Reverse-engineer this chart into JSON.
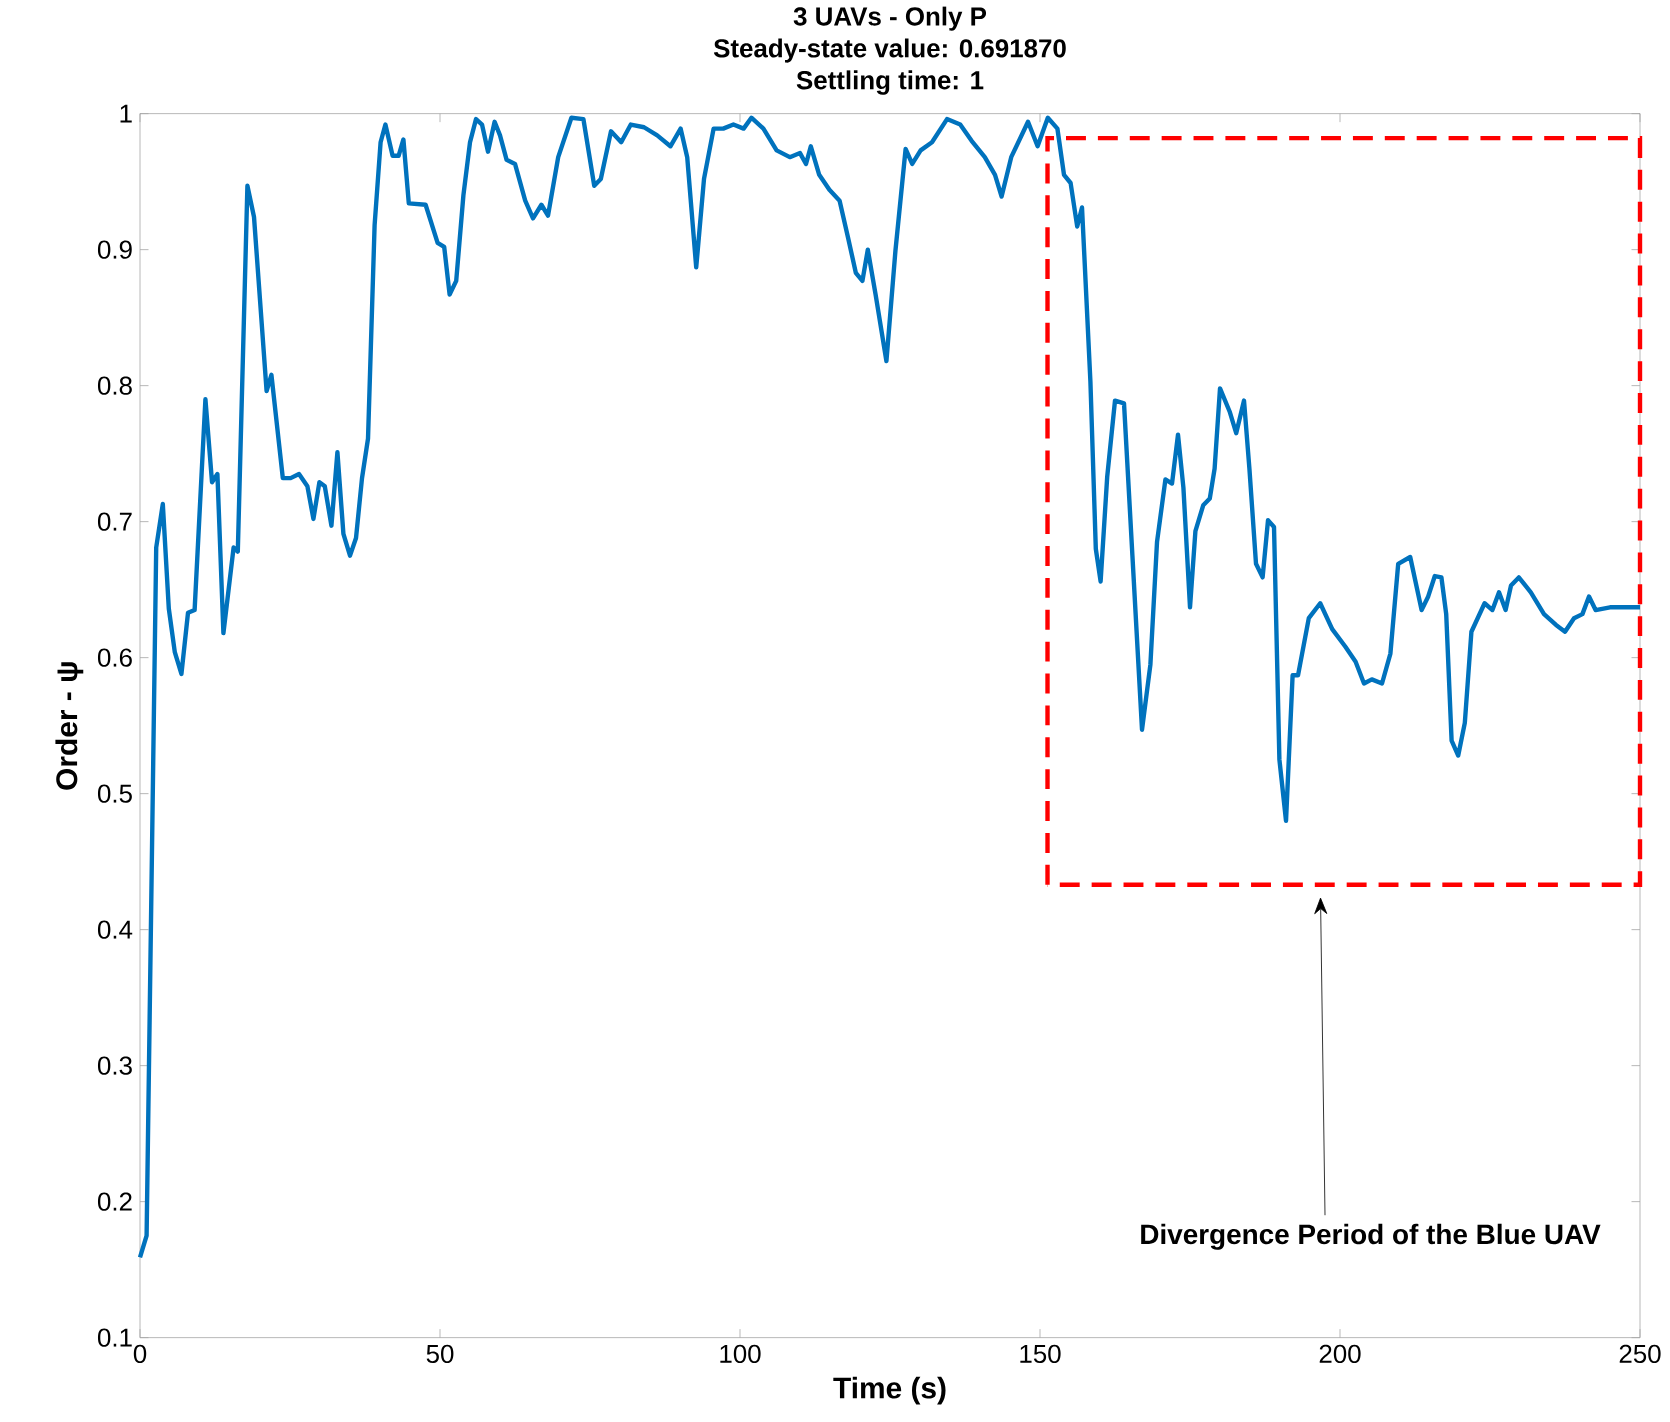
{
  "chart_data": {
    "type": "line",
    "title": "3 UAVs - Only P",
    "subtitle": "Steady-state value: 0.691870",
    "xlabel": "Time (s)",
    "ylabel": "Order - ψ",
    "xlim": [
      0,
      250
    ],
    "ylim": [
      0.1,
      1
    ],
    "xticks": [
      0,
      50,
      100,
      150,
      200,
      250
    ],
    "yticks": [
      {
        "value": 0.1,
        "label": "0.1"
      },
      {
        "value": 0.2,
        "label": "0.2"
      },
      {
        "value": 0.3,
        "label": "0.3"
      },
      {
        "value": 0.4,
        "label": "0.4"
      },
      {
        "value": 0.5,
        "label": "0.5"
      },
      {
        "value": 0.6,
        "label": "0.6"
      },
      {
        "value": 0.7,
        "label": "0.7"
      },
      {
        "value": 0.8,
        "label": "0.8"
      },
      {
        "value": 0.9,
        "label": "0.9"
      },
      {
        "value": 1,
        "label": "1"
      }
    ],
    "grid": false,
    "marker": "none",
    "line_style": "solid",
    "series": [
      {
        "color": "#0072bd",
        "x": [
          0,
          1.1,
          2.7,
          3.8,
          4.8,
          5.8,
          6.9,
          8.0,
          9.1,
          10.9,
          12.0,
          12.9,
          13.9,
          15.6,
          16.3,
          17.9,
          19.0,
          21.1,
          21.9,
          23.8,
          25.1,
          26.5,
          27.9,
          28.9,
          29.9,
          30.8,
          31.9,
          32.9,
          33.9,
          35.0,
          36.0,
          37.0,
          38.0,
          39.1,
          40.1,
          40.9,
          42.1,
          43.1,
          43.9,
          44.8,
          47.6,
          49.6,
          50.7,
          51.6,
          52.7,
          53.9,
          55.0,
          56.0,
          57.0,
          58.0,
          59.1,
          60.0,
          61.1,
          62.5,
          64.2,
          65.5,
          66.9,
          68.0,
          69.7,
          71.9,
          73.9,
          75.7,
          76.8,
          78.5,
          80.2,
          81.8,
          84.0,
          86.2,
          88.4,
          90.1,
          91.2,
          92.7,
          94.0,
          95.6,
          97.2,
          98.9,
          100.6,
          101.9,
          103.9,
          106.1,
          108.3,
          110.0,
          111.0,
          111.8,
          113.2,
          114.9,
          116.6,
          118.0,
          119.3,
          120.4,
          121.3,
          122.6,
          124.4,
          125.9,
          127.6,
          128.7,
          130.1,
          132.0,
          134.5,
          136.7,
          138.6,
          140.8,
          142.5,
          143.6,
          145.2,
          148.0,
          149.6,
          151.3,
          152.9,
          154.0,
          155.1,
          156.2,
          157.0,
          158.4,
          159.3,
          160.1,
          161.2,
          162.5,
          164.0,
          165.4,
          167.0,
          168.4,
          169.5,
          170.9,
          172.0,
          173.0,
          173.9,
          175.0,
          175.9,
          177.2,
          178.3,
          179.1,
          180.0,
          181.6,
          182.7,
          184.0,
          184.9,
          186.0,
          187.1,
          188.0,
          189.0,
          189.9,
          191.0,
          192.1,
          193.0,
          194.8,
          196.7,
          198.7,
          200.9,
          202.6,
          204.0,
          205.3,
          207.0,
          208.4,
          209.7,
          211.7,
          213.6,
          214.7,
          215.8,
          216.9,
          217.7,
          218.6,
          219.7,
          220.8,
          221.9,
          224.1,
          225.4,
          226.5,
          227.6,
          228.5,
          229.8,
          231.8,
          234.0,
          236.0,
          237.5,
          239.0,
          240.4,
          241.5,
          242.6,
          245.0,
          248.9,
          250
        ],
        "values": [
          0.159,
          0.175,
          0.681,
          0.713,
          0.636,
          0.604,
          0.588,
          0.633,
          0.635,
          0.79,
          0.729,
          0.735,
          0.618,
          0.681,
          0.678,
          0.947,
          0.924,
          0.796,
          0.808,
          0.732,
          0.732,
          0.735,
          0.726,
          0.702,
          0.729,
          0.726,
          0.697,
          0.751,
          0.691,
          0.675,
          0.688,
          0.732,
          0.761,
          0.918,
          0.979,
          0.992,
          0.969,
          0.969,
          0.981,
          0.934,
          0.933,
          0.905,
          0.902,
          0.867,
          0.877,
          0.94,
          0.979,
          0.996,
          0.992,
          0.972,
          0.994,
          0.984,
          0.966,
          0.963,
          0.936,
          0.923,
          0.933,
          0.925,
          0.968,
          0.997,
          0.996,
          0.947,
          0.952,
          0.987,
          0.979,
          0.992,
          0.99,
          0.984,
          0.976,
          0.989,
          0.968,
          0.887,
          0.952,
          0.989,
          0.989,
          0.992,
          0.989,
          0.997,
          0.989,
          0.973,
          0.968,
          0.971,
          0.963,
          0.976,
          0.955,
          0.944,
          0.936,
          0.909,
          0.883,
          0.877,
          0.9,
          0.867,
          0.818,
          0.899,
          0.974,
          0.963,
          0.973,
          0.979,
          0.996,
          0.992,
          0.98,
          0.968,
          0.955,
          0.939,
          0.968,
          0.994,
          0.976,
          0.997,
          0.989,
          0.955,
          0.949,
          0.917,
          0.931,
          0.803,
          0.68,
          0.656,
          0.733,
          0.789,
          0.787,
          0.675,
          0.547,
          0.595,
          0.685,
          0.731,
          0.728,
          0.764,
          0.725,
          0.637,
          0.693,
          0.712,
          0.717,
          0.739,
          0.798,
          0.781,
          0.765,
          0.789,
          0.739,
          0.669,
          0.659,
          0.701,
          0.696,
          0.525,
          0.48,
          0.587,
          0.587,
          0.629,
          0.64,
          0.621,
          0.608,
          0.597,
          0.581,
          0.584,
          0.581,
          0.603,
          0.669,
          0.674,
          0.635,
          0.645,
          0.66,
          0.659,
          0.632,
          0.539,
          0.528,
          0.552,
          0.619,
          0.64,
          0.635,
          0.648,
          0.635,
          0.653,
          0.659,
          0.648,
          0.632,
          0.624,
          0.619,
          0.629,
          0.632,
          0.645,
          0.635,
          0.637,
          0.637,
          0.637
        ]
      }
    ],
    "annotations": [
      "Settling time: 1",
      "Divergence Period of the Blue UAV"
    ]
  }
}
